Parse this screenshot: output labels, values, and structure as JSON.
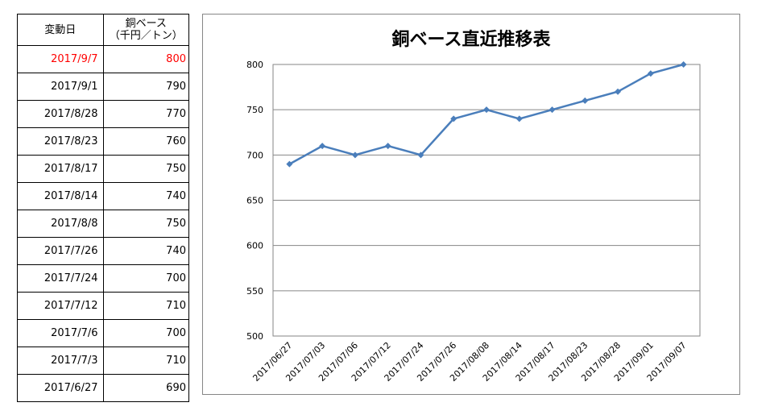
{
  "table": {
    "header_date": "変動日",
    "header_price_line1": "銅ベース",
    "header_price_line2": "（千円／トン）",
    "rows": [
      {
        "date": "2017/9/7",
        "price": "800",
        "highlight": true
      },
      {
        "date": "2017/9/1",
        "price": "790",
        "highlight": false
      },
      {
        "date": "2017/8/28",
        "price": "770",
        "highlight": false
      },
      {
        "date": "2017/8/23",
        "price": "760",
        "highlight": false
      },
      {
        "date": "2017/8/17",
        "price": "750",
        "highlight": false
      },
      {
        "date": "2017/8/14",
        "price": "740",
        "highlight": false
      },
      {
        "date": "2017/8/8",
        "price": "750",
        "highlight": false
      },
      {
        "date": "2017/7/26",
        "price": "740",
        "highlight": false
      },
      {
        "date": "2017/7/24",
        "price": "700",
        "highlight": false
      },
      {
        "date": "2017/7/12",
        "price": "710",
        "highlight": false
      },
      {
        "date": "2017/7/6",
        "price": "700",
        "highlight": false
      },
      {
        "date": "2017/7/3",
        "price": "710",
        "highlight": false
      },
      {
        "date": "2017/6/27",
        "price": "690",
        "highlight": false
      }
    ],
    "highlight_color": "#ff0000"
  },
  "chart_data": {
    "type": "line",
    "title": "銅ベース直近推移表",
    "xlabel": "",
    "ylabel": "",
    "x": [
      "2017/06/27",
      "2017/07/03",
      "2017/07/06",
      "2017/07/12",
      "2017/07/24",
      "2017/07/26",
      "2017/08/08",
      "2017/08/14",
      "2017/08/17",
      "2017/08/23",
      "2017/08/28",
      "2017/09/01",
      "2017/09/07"
    ],
    "values": [
      690,
      710,
      700,
      710,
      700,
      740,
      750,
      740,
      750,
      760,
      770,
      790,
      800
    ],
    "ylim": [
      500,
      800
    ],
    "yticks": [
      500,
      550,
      600,
      650,
      700,
      750,
      800
    ],
    "grid": true,
    "legend": "none",
    "marker": "diamond",
    "line_color": "#4a7ebb"
  }
}
